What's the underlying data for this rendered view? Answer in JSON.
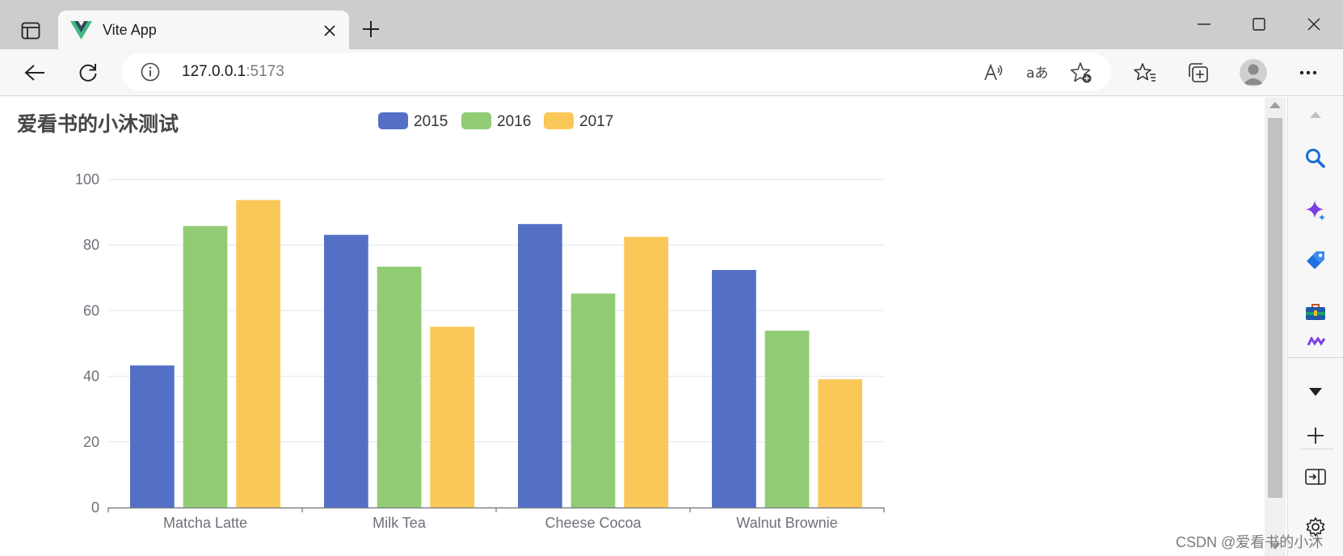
{
  "browser": {
    "tab": {
      "title": "Vite App"
    },
    "address": {
      "host": "127.0.0.1",
      "port": ":5173"
    }
  },
  "page": {
    "title": "爱看书的小沐测试"
  },
  "chart_data": {
    "type": "bar",
    "categories": [
      "Matcha Latte",
      "Milk Tea",
      "Cheese Cocoa",
      "Walnut Brownie"
    ],
    "series": [
      {
        "name": "2015",
        "color": "#5470c6",
        "values": [
          43.3,
          83.1,
          86.4,
          72.4
        ]
      },
      {
        "name": "2016",
        "color": "#91cc75",
        "values": [
          85.8,
          73.4,
          65.2,
          53.9
        ]
      },
      {
        "name": "2017",
        "color": "#fac858",
        "values": [
          93.7,
          55.1,
          82.5,
          39.1
        ]
      }
    ],
    "ylim": [
      0,
      100
    ],
    "yticks": [
      0,
      20,
      40,
      60,
      80,
      100
    ],
    "grid": true,
    "legend_position": "top"
  },
  "watermark": "CSDN @爱看书的小沐"
}
